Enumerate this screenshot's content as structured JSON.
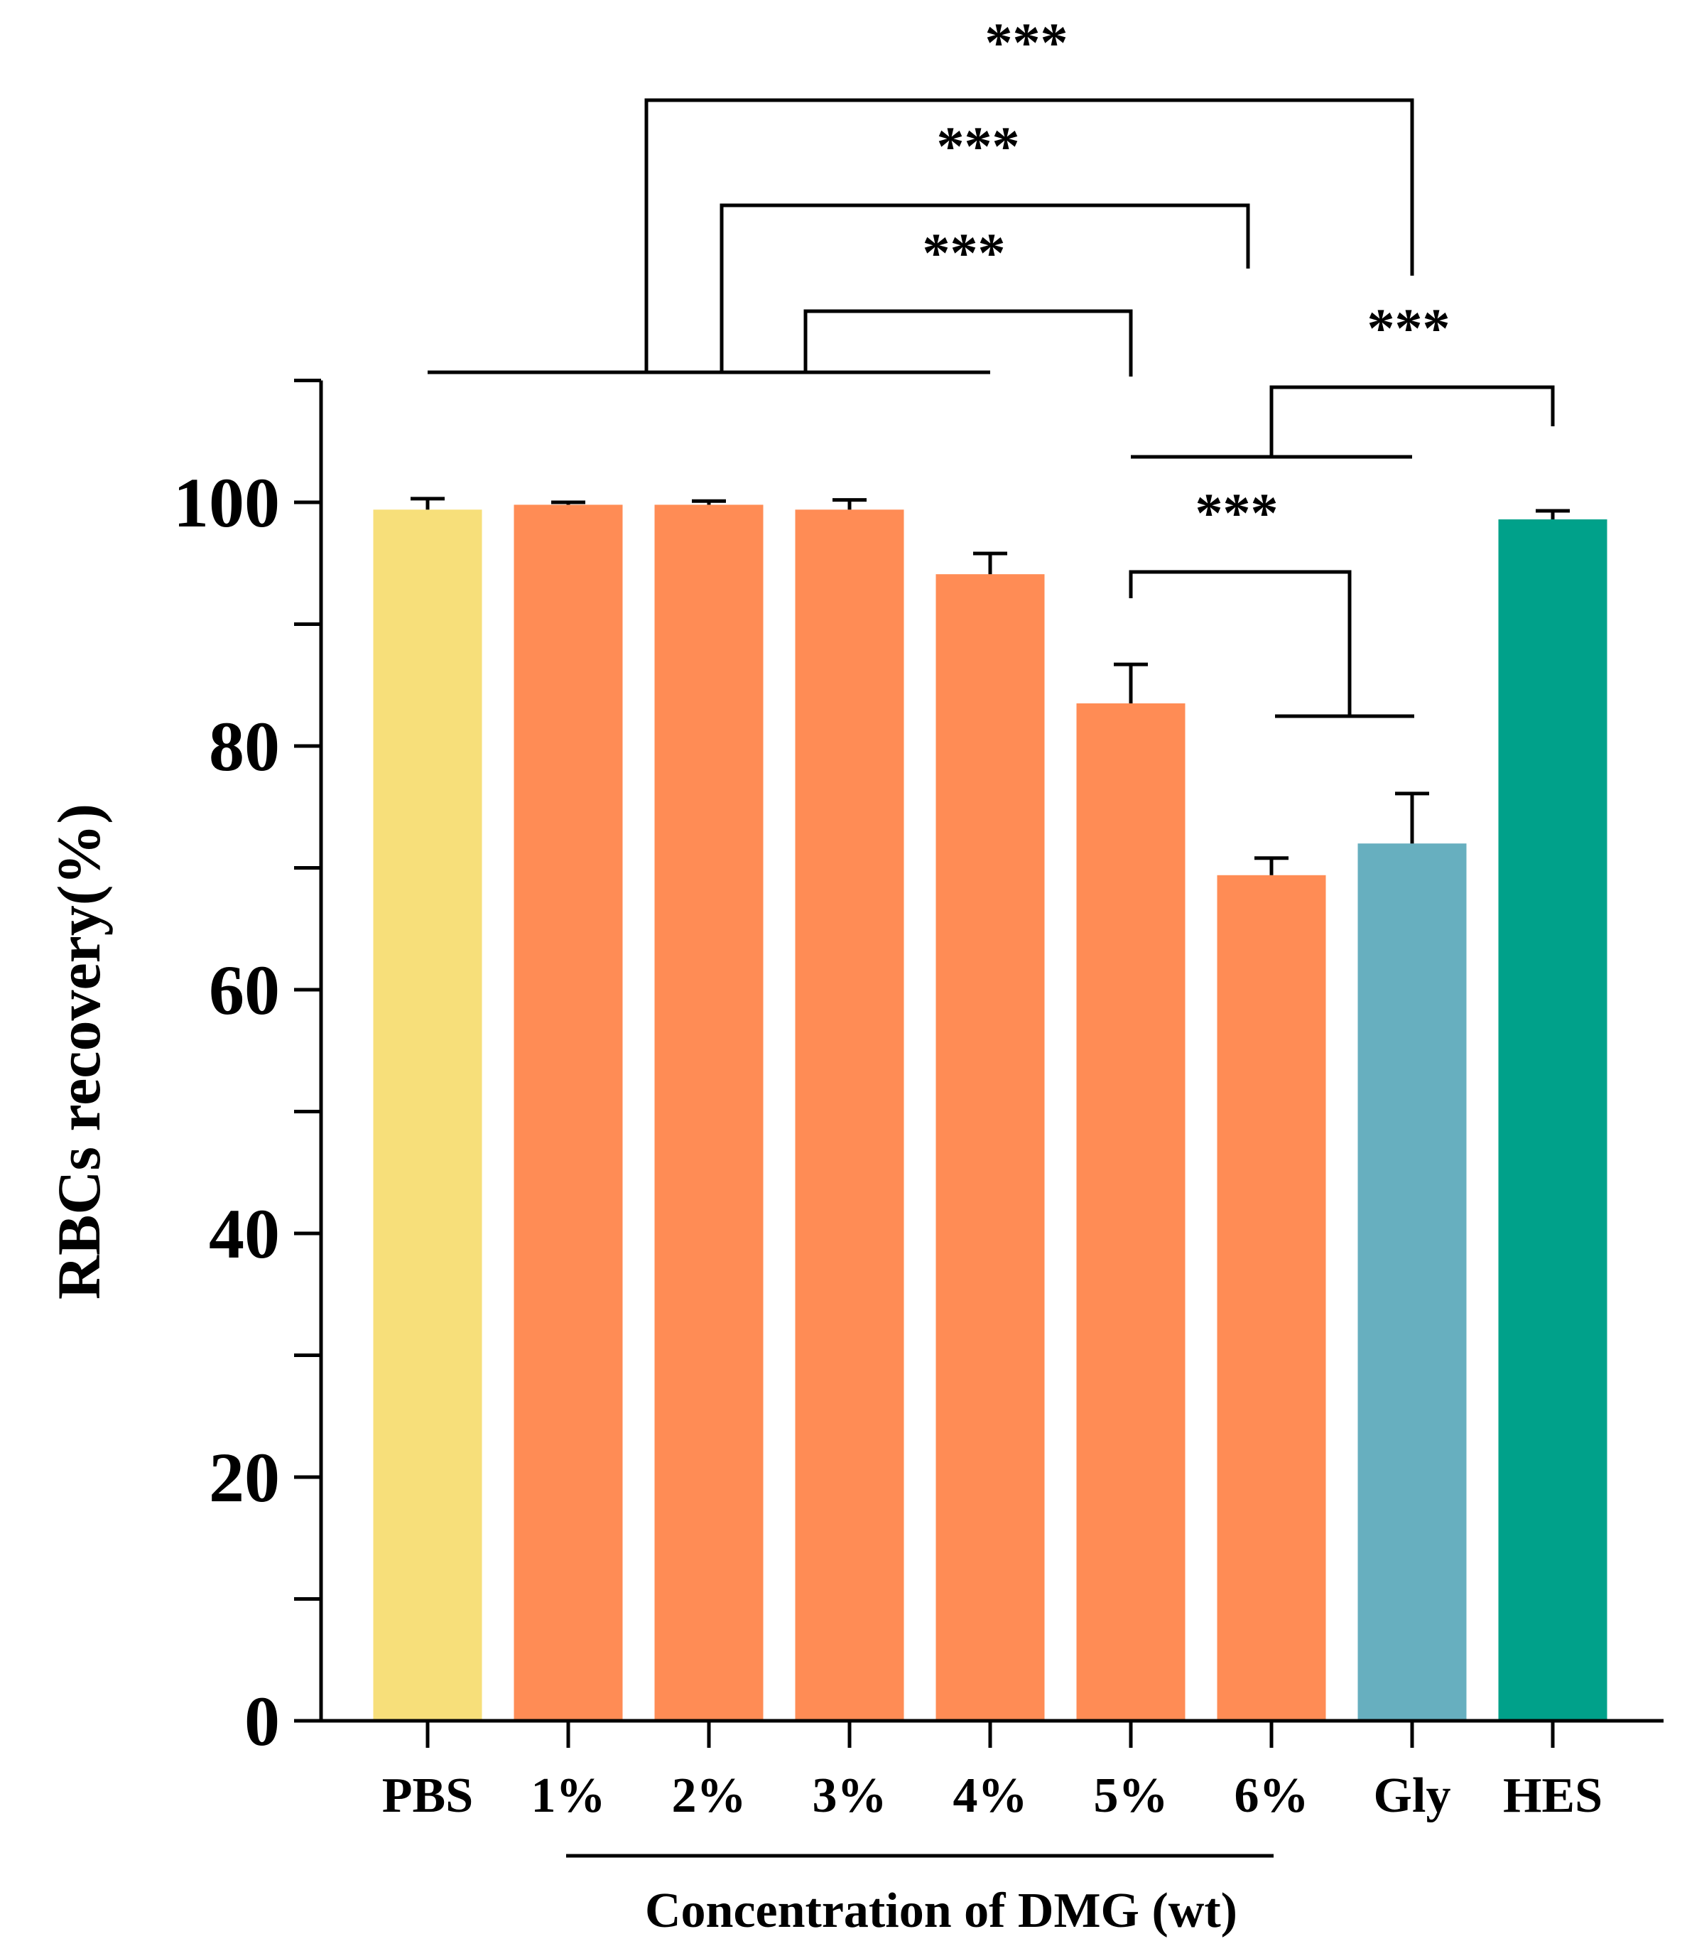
{
  "chart_data": {
    "type": "bar",
    "title": "",
    "ylabel": "RBCs recovery(%)",
    "xlabel": "",
    "ylim": [
      0,
      110
    ],
    "yticks": [
      0,
      20,
      40,
      60,
      80,
      100
    ],
    "yminor_ticks": [
      10,
      30,
      50,
      70,
      90,
      110
    ],
    "categories": [
      "PBS",
      "1%",
      "2%",
      "3%",
      "4%",
      "5%",
      "6%",
      "Gly",
      "HES"
    ],
    "values": [
      99.4,
      99.8,
      99.8,
      99.4,
      94.1,
      83.5,
      69.4,
      72.0,
      98.6
    ],
    "errors": [
      0.9,
      0.2,
      0.3,
      0.8,
      1.7,
      3.2,
      1.4,
      4.1,
      0.7
    ],
    "colors": [
      "#f7df7a",
      "#ff8c55",
      "#ff8c55",
      "#ff8c55",
      "#ff8c55",
      "#ff8c55",
      "#ff8c55",
      "#67afbf",
      "#00a18a"
    ],
    "group_label": {
      "text": "Concentration of DMG (wt)",
      "from": "1%",
      "to": "6%"
    },
    "significance": [
      {
        "label": "***",
        "from": [
          "PBS",
          "4%"
        ],
        "to": "Gly"
      },
      {
        "label": "***",
        "from": [
          "PBS",
          "4%"
        ],
        "to": "6%"
      },
      {
        "label": "***",
        "from": [
          "PBS",
          "4%"
        ],
        "to": "5%"
      },
      {
        "label": "***",
        "from": [
          "5%",
          "Gly"
        ],
        "to": "HES"
      },
      {
        "label": "***",
        "from": "5%",
        "to": [
          "6%",
          "Gly"
        ]
      }
    ]
  }
}
